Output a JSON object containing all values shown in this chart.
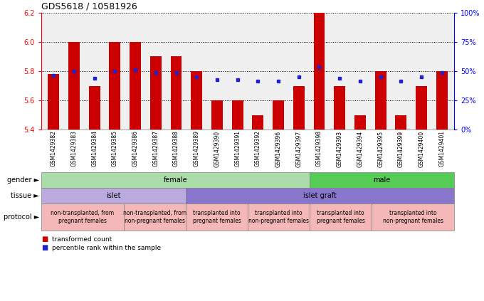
{
  "title": "GDS5618 / 10581926",
  "samples": [
    "GSM1429382",
    "GSM1429383",
    "GSM1429384",
    "GSM1429385",
    "GSM1429386",
    "GSM1429387",
    "GSM1429388",
    "GSM1429389",
    "GSM1429390",
    "GSM1429391",
    "GSM1429392",
    "GSM1429396",
    "GSM1429397",
    "GSM1429398",
    "GSM1429393",
    "GSM1429394",
    "GSM1429395",
    "GSM1429399",
    "GSM1429400",
    "GSM1429401"
  ],
  "red_values": [
    5.78,
    6.0,
    5.7,
    6.0,
    6.0,
    5.9,
    5.9,
    5.8,
    5.6,
    5.6,
    5.5,
    5.6,
    5.7,
    6.2,
    5.7,
    5.5,
    5.8,
    5.5,
    5.7,
    5.8
  ],
  "blue_values": [
    5.77,
    5.8,
    5.75,
    5.8,
    5.81,
    5.79,
    5.79,
    5.76,
    5.74,
    5.74,
    5.73,
    5.73,
    5.76,
    5.83,
    5.75,
    5.73,
    5.76,
    5.73,
    5.76,
    5.79
  ],
  "ylim": [
    5.4,
    6.2
  ],
  "yticks_left": [
    5.4,
    5.6,
    5.8,
    6.0,
    6.2
  ],
  "right_yticks_pct": [
    0,
    25,
    50,
    75,
    100
  ],
  "right_ytick_labels": [
    "0%",
    "25%",
    "50%",
    "75%",
    "100%"
  ],
  "bar_color": "#cc0000",
  "dot_color": "#2222cc",
  "plot_bg": "#f0f0f0",
  "gender_female_color": "#aaddaa",
  "gender_male_color": "#55cc55",
  "tissue_islet_color": "#bbaadd",
  "tissue_graft_color": "#8877cc",
  "protocol_color": "#f5b8b8",
  "gender_spans": [
    {
      "label": "female",
      "start": 0,
      "end": 13
    },
    {
      "label": "male",
      "start": 13,
      "end": 20
    }
  ],
  "tissue_spans": [
    {
      "label": "islet",
      "start": 0,
      "end": 7
    },
    {
      "label": "islet graft",
      "start": 7,
      "end": 20
    }
  ],
  "protocol_spans": [
    {
      "label": "non-transplanted, from\npregnant females",
      "start": 0,
      "end": 4
    },
    {
      "label": "non-transplanted, from\nnon-pregnant females",
      "start": 4,
      "end": 7
    },
    {
      "label": "transplanted into\npregnant females",
      "start": 7,
      "end": 10
    },
    {
      "label": "transplanted into\nnon-pregnant females",
      "start": 10,
      "end": 13
    },
    {
      "label": "transplanted into\npregnant females",
      "start": 13,
      "end": 16
    },
    {
      "label": "transplanted into\nnon-pregnant females",
      "start": 16,
      "end": 20
    }
  ]
}
